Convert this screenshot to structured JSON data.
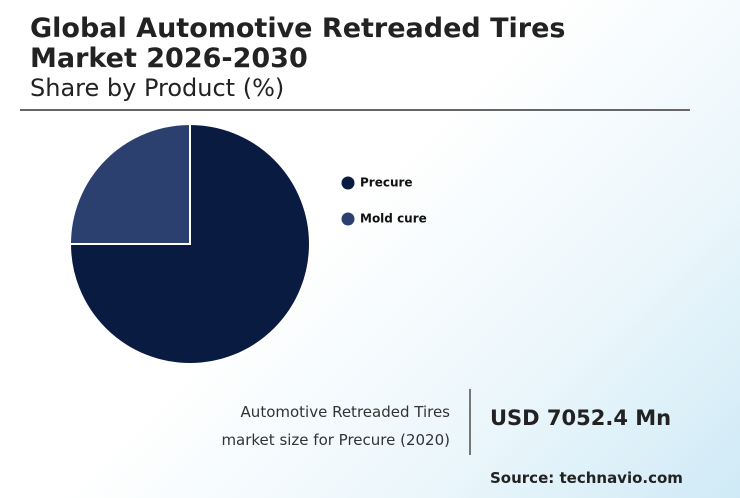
{
  "chart_data": {
    "type": "pie",
    "title": "Global Automotive Retreaded Tires Market 2026-2030",
    "subtitle": "Share by Product (%)",
    "categories": [
      "Precure",
      "Mold cure"
    ],
    "values": [
      75,
      25
    ],
    "colors": [
      "#0a1b42",
      "#2c4070"
    ],
    "info_text": "Automotive Retreaded Tires market size for Precure (2020)",
    "info_value": "USD 7052.4 Mn",
    "source": "Source: technavio.com"
  }
}
